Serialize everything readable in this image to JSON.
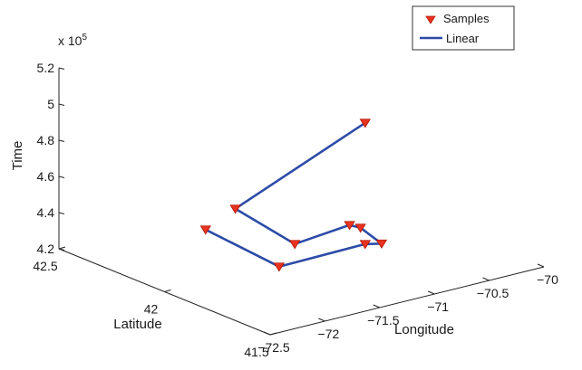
{
  "chart_data": {
    "type": "line",
    "projection": "3d",
    "xlabel": "Longitude",
    "ylabel": "Latitude",
    "zlabel": "Time",
    "z_exponent_label": "x 10",
    "z_exponent_power": "5",
    "xlim": [
      -72.5,
      -70
    ],
    "ylim": [
      41.5,
      42.5
    ],
    "zlim": [
      4.2,
      5.2
    ],
    "x_ticks": [
      "-72.5",
      "-72",
      "-71.5",
      "-71",
      "-70.5",
      "-70"
    ],
    "y_ticks": [
      "41.5",
      "42",
      "42.5"
    ],
    "z_ticks": [
      "4.2",
      "4.4",
      "4.6",
      "4.8",
      "5",
      "5.2"
    ],
    "legend_position": "top-right",
    "legend": [
      {
        "name": "Samples",
        "marker": "triangle-down",
        "color": "#e8331e"
      },
      {
        "name": "Linear",
        "marker": "line",
        "color": "#2d4ba8"
      }
    ],
    "series": [
      {
        "name": "Samples",
        "points": [
          {
            "lon": -71.45,
            "lat": 42.35,
            "time": 4.22
          },
          {
            "lon": -71.55,
            "lat": 41.95,
            "time": 4.22
          },
          {
            "lon": -71.15,
            "lat": 41.75,
            "time": 4.38
          },
          {
            "lon": -71.0,
            "lat": 41.75,
            "time": 4.36
          },
          {
            "lon": -71.0,
            "lat": 41.85,
            "time": 4.4
          },
          {
            "lon": -71.1,
            "lat": 41.85,
            "time": 4.43
          },
          {
            "lon": -71.6,
            "lat": 41.85,
            "time": 4.4
          },
          {
            "lon": -71.95,
            "lat": 41.95,
            "time": 4.6
          },
          {
            "lon": -71.15,
            "lat": 41.75,
            "time": 5.05
          }
        ]
      }
    ]
  },
  "colors": {
    "marker_fill": "#e8331e",
    "marker_edge": "#b0180a",
    "line": "#2d4ba8"
  }
}
